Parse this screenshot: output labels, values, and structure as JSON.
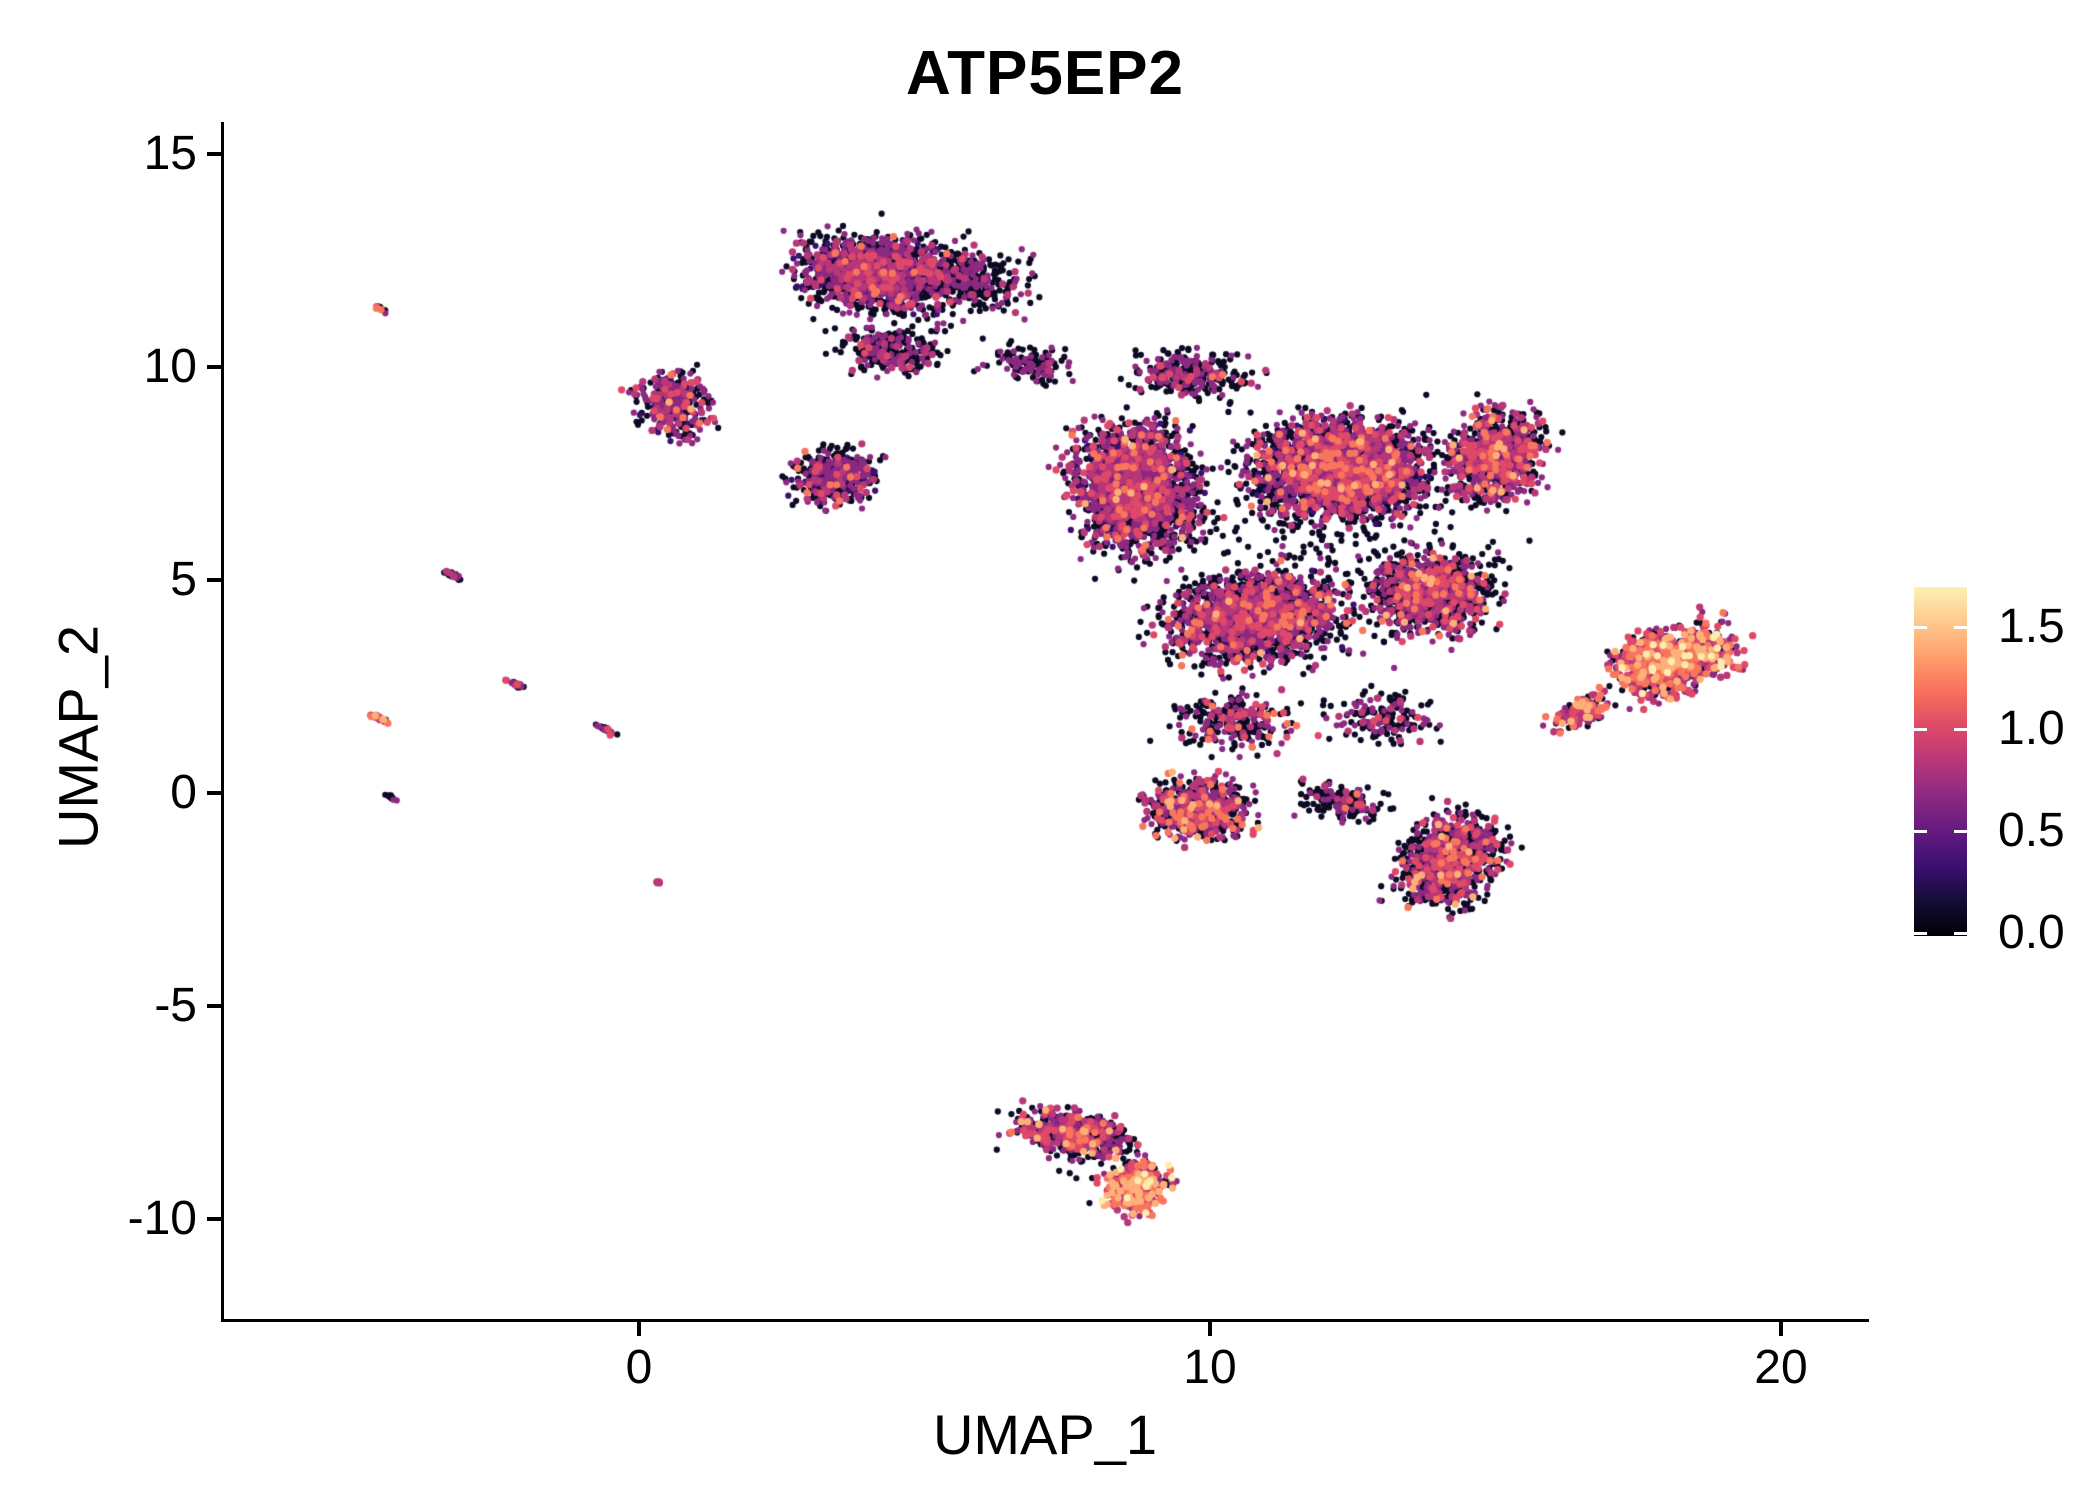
{
  "chart_data": {
    "type": "scatter",
    "title": "ATP5EP2",
    "xlabel": "UMAP_1",
    "ylabel": "UMAP_2",
    "xlim": [
      -7.27,
      21.49
    ],
    "ylim": [
      -12.35,
      15.75
    ],
    "xticks": [
      0,
      10,
      20
    ],
    "yticks": [
      15,
      10,
      5,
      0,
      -5,
      -10
    ],
    "grid": false,
    "background": "#ffffff",
    "point_radius": 3.1,
    "seed": 42,
    "legend_position": "right",
    "colorbar": {
      "title": "",
      "tick_labels": [
        "1.5",
        "1.0",
        "0.5",
        "0.0"
      ],
      "tick_values": [
        1.5,
        1.0,
        0.5,
        0.0
      ],
      "vmin": 0.0,
      "vmax": 1.7,
      "palette_name": "magma",
      "gradient_bottom_to_top": [
        "#000004",
        "#140e36",
        "#3b0f70",
        "#641a80",
        "#8c2981",
        "#b73779",
        "#de4968",
        "#f7705c",
        "#fe9f6d",
        "#fec98d",
        "#fbf2b6"
      ]
    },
    "palette": {
      "black": "#0d0a23",
      "darkpurple": "#3b0f70",
      "purple": "#8c2981",
      "magenta": "#b73779",
      "pink": "#de4968",
      "orange": "#f8765c",
      "peach": "#feb078",
      "cream": "#fcecae"
    },
    "color_order": [
      "black",
      "darkpurple",
      "purple",
      "magenta",
      "pink",
      "orange",
      "peach",
      "cream"
    ],
    "clusters": [
      {
        "name": "streak-topleft",
        "cx": -4.5,
        "cy": 11.35,
        "rx": 0.18,
        "ry": 0.05,
        "angle": -35,
        "n": 10,
        "mix": {
          "black": 35,
          "purple": 15,
          "pink": 20,
          "orange": 30
        }
      },
      {
        "name": "streak-left-5",
        "cx": -3.25,
        "cy": 5.1,
        "rx": 0.28,
        "ry": 0.07,
        "angle": -35,
        "n": 26,
        "mix": {
          "black": 70,
          "purple": 20,
          "magenta": 10
        }
      },
      {
        "name": "streak-left-25",
        "cx": -2.15,
        "cy": 2.55,
        "rx": 0.24,
        "ry": 0.06,
        "angle": -35,
        "n": 22,
        "mix": {
          "black": 60,
          "purple": 20,
          "magenta": 10,
          "pink": 10
        }
      },
      {
        "name": "streak-left-15",
        "cx": -0.6,
        "cy": 1.5,
        "rx": 0.3,
        "ry": 0.07,
        "angle": -35,
        "n": 28,
        "mix": {
          "black": 55,
          "purple": 25,
          "magenta": 10,
          "pink": 10
        }
      },
      {
        "name": "streak-far-left",
        "cx": -4.55,
        "cy": 1.75,
        "rx": 0.24,
        "ry": 0.07,
        "angle": -35,
        "n": 20,
        "mix": {
          "black": 30,
          "purple": 15,
          "pink": 15,
          "orange": 25,
          "peach": 10,
          "cream": 5
        }
      },
      {
        "name": "streak-left-0",
        "cx": -4.35,
        "cy": -0.1,
        "rx": 0.16,
        "ry": 0.05,
        "angle": -35,
        "n": 12,
        "mix": {
          "black": 80,
          "purple": 20
        }
      },
      {
        "name": "dot-left",
        "cx": 0.35,
        "cy": -2.1,
        "rx": 0.07,
        "ry": 0.06,
        "angle": 0,
        "n": 4,
        "mix": {
          "purple": 60,
          "magenta": 40
        }
      },
      {
        "name": "top-main",
        "cx": 4.2,
        "cy": 12.2,
        "rx": 1.9,
        "ry": 1.15,
        "angle": -4,
        "n": 1600,
        "mix": {
          "black": 50,
          "darkpurple": 10,
          "purple": 27,
          "magenta": 9,
          "pink": 3,
          "orange": 1
        }
      },
      {
        "name": "top-main-edge",
        "cx": 5.9,
        "cy": 12.0,
        "rx": 1.3,
        "ry": 1.0,
        "angle": 0,
        "n": 260,
        "mix": {
          "black": 75,
          "purple": 20,
          "magenta": 5
        }
      },
      {
        "name": "top-halo",
        "cx": 4.5,
        "cy": 11.8,
        "rx": 2.6,
        "ry": 1.9,
        "angle": 0,
        "n": 90,
        "mix": {
          "black": 88,
          "purple": 12
        }
      },
      {
        "name": "top-tail",
        "cx": 4.4,
        "cy": 10.4,
        "rx": 1.2,
        "ry": 0.8,
        "angle": -10,
        "n": 260,
        "mix": {
          "black": 62,
          "purple": 28,
          "magenta": 8,
          "pink": 2
        }
      },
      {
        "name": "top-bridge",
        "cx": 6.9,
        "cy": 10.1,
        "rx": 1.05,
        "ry": 0.6,
        "angle": -10,
        "n": 130,
        "mix": {
          "black": 70,
          "purple": 25,
          "magenta": 5
        }
      },
      {
        "name": "left-blob",
        "cx": 0.6,
        "cy": 9.1,
        "rx": 0.95,
        "ry": 1.05,
        "angle": 0,
        "n": 330,
        "mix": {
          "black": 44,
          "purple": 28,
          "darkpurple": 8,
          "magenta": 10,
          "pink": 6,
          "orange": 3,
          "peach": 1
        }
      },
      {
        "name": "mid-blob",
        "cx": 3.4,
        "cy": 7.4,
        "rx": 1.0,
        "ry": 0.95,
        "angle": 0,
        "n": 430,
        "mix": {
          "black": 52,
          "darkpurple": 10,
          "purple": 28,
          "magenta": 7,
          "pink": 2,
          "orange": 1
        }
      },
      {
        "name": "main-nw",
        "cx": 8.7,
        "cy": 7.2,
        "rx": 1.5,
        "ry": 2.0,
        "angle": 10,
        "n": 2100,
        "mix": {
          "black": 47,
          "purple": 29,
          "darkpurple": 6,
          "magenta": 10,
          "pink": 5,
          "orange": 2.5,
          "peach": 0.5
        }
      },
      {
        "name": "main-top",
        "cx": 9.6,
        "cy": 9.8,
        "rx": 1.5,
        "ry": 0.75,
        "angle": -5,
        "n": 300,
        "mix": {
          "black": 60,
          "purple": 28,
          "magenta": 8,
          "pink": 3,
          "orange": 1
        }
      },
      {
        "name": "main-ne",
        "cx": 12.3,
        "cy": 7.6,
        "rx": 2.1,
        "ry": 1.6,
        "angle": 0,
        "n": 2900,
        "mix": {
          "black": 50,
          "purple": 27,
          "darkpurple": 5,
          "magenta": 10,
          "pink": 5,
          "orange": 2.5,
          "peach": 0.5
        }
      },
      {
        "name": "main-e",
        "cx": 15.0,
        "cy": 7.9,
        "rx": 1.15,
        "ry": 1.5,
        "angle": -15,
        "n": 850,
        "mix": {
          "black": 44,
          "purple": 30,
          "magenta": 14,
          "pink": 8,
          "orange": 3,
          "peach": 1
        }
      },
      {
        "name": "main-s",
        "cx": 10.8,
        "cy": 4.1,
        "rx": 2.1,
        "ry": 1.45,
        "angle": 5,
        "n": 1800,
        "mix": {
          "black": 49,
          "purple": 28,
          "darkpurple": 5,
          "magenta": 10,
          "pink": 5,
          "orange": 2.5,
          "peach": 0.5
        }
      },
      {
        "name": "main-se",
        "cx": 13.9,
        "cy": 4.7,
        "rx": 1.5,
        "ry": 1.3,
        "angle": 0,
        "n": 1000,
        "mix": {
          "black": 48,
          "purple": 29,
          "magenta": 11,
          "pink": 7,
          "orange": 4,
          "peach": 1
        }
      },
      {
        "name": "main-halo",
        "cx": 11.5,
        "cy": 6.0,
        "rx": 4.5,
        "ry": 4.2,
        "angle": 0,
        "n": 350,
        "mix": {
          "black": 85,
          "purple": 15
        }
      },
      {
        "name": "main-s-sparse",
        "cx": 10.4,
        "cy": 1.7,
        "rx": 1.5,
        "ry": 1.0,
        "angle": 0,
        "n": 240,
        "mix": {
          "black": 62,
          "purple": 22,
          "magenta": 8,
          "pink": 5,
          "orange": 3
        }
      },
      {
        "name": "main-se-sparse",
        "cx": 13.0,
        "cy": 1.8,
        "rx": 1.3,
        "ry": 0.9,
        "angle": 0,
        "n": 160,
        "mix": {
          "black": 60,
          "purple": 25,
          "magenta": 8,
          "pink": 4,
          "orange": 3
        }
      },
      {
        "name": "wedge-tip",
        "cx": 16.5,
        "cy": 1.9,
        "rx": 0.8,
        "ry": 0.4,
        "angle": 30,
        "n": 140,
        "mix": {
          "black": 30,
          "purple": 25,
          "magenta": 15,
          "pink": 15,
          "orange": 10,
          "peach": 5
        }
      },
      {
        "name": "wedge-main",
        "cx": 18.1,
        "cy": 3.1,
        "rx": 1.55,
        "ry": 1.0,
        "angle": 25,
        "n": 950,
        "mix": {
          "black": 22,
          "purple": 22,
          "magenta": 16,
          "pink": 16,
          "orange": 14,
          "peach": 8,
          "cream": 2
        }
      },
      {
        "name": "below-main",
        "cx": 9.8,
        "cy": -0.4,
        "rx": 1.25,
        "ry": 1.0,
        "angle": 0,
        "n": 650,
        "mix": {
          "black": 50,
          "purple": 26,
          "magenta": 10,
          "pink": 7,
          "orange": 5,
          "peach": 2
        }
      },
      {
        "name": "bridge-low",
        "cx": 12.3,
        "cy": -0.2,
        "rx": 1.0,
        "ry": 0.6,
        "angle": -10,
        "n": 150,
        "mix": {
          "black": 62,
          "purple": 24,
          "magenta": 8,
          "pink": 4,
          "orange": 2
        }
      },
      {
        "name": "lower-right",
        "cx": 14.2,
        "cy": -1.6,
        "rx": 1.1,
        "ry": 1.5,
        "angle": -25,
        "n": 950,
        "mix": {
          "black": 53,
          "purple": 27,
          "magenta": 10,
          "pink": 6,
          "orange": 3,
          "peach": 1
        }
      },
      {
        "name": "bottom-main",
        "cx": 7.6,
        "cy": -8.0,
        "rx": 1.45,
        "ry": 0.75,
        "angle": -12,
        "n": 520,
        "mix": {
          "black": 44,
          "purple": 28,
          "magenta": 12,
          "pink": 9,
          "orange": 5,
          "peach": 2
        }
      },
      {
        "name": "bottom-tip",
        "cx": 8.7,
        "cy": -9.3,
        "rx": 0.8,
        "ry": 0.85,
        "angle": -20,
        "n": 340,
        "mix": {
          "black": 18,
          "purple": 18,
          "magenta": 15,
          "pink": 18,
          "orange": 18,
          "peach": 10,
          "cream": 3
        }
      },
      {
        "name": "bottom-halo",
        "cx": 7.9,
        "cy": -8.6,
        "rx": 1.8,
        "ry": 1.2,
        "angle": -15,
        "n": 40,
        "mix": {
          "black": 90,
          "purple": 10
        }
      }
    ]
  },
  "axes": {
    "x_tick_labels": [
      "0",
      "10",
      "20"
    ],
    "y_tick_labels": [
      "15",
      "10",
      "5",
      "0",
      "-5",
      "-10"
    ]
  },
  "legend": {
    "labels": [
      "1.5",
      "1.0",
      "0.5",
      "0.0"
    ]
  }
}
